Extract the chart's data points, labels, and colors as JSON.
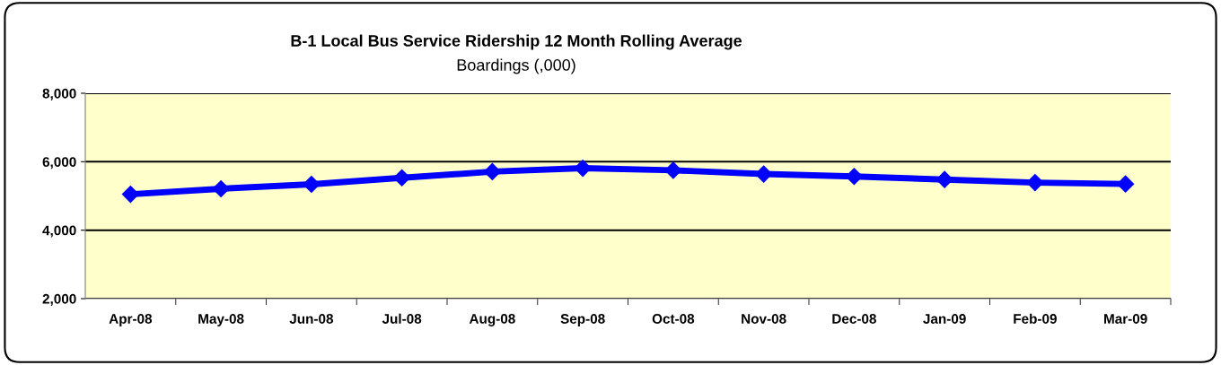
{
  "chart_data": {
    "type": "line",
    "title": "B-1 Local Bus Service Ridership 12 Month Rolling Average",
    "subtitle": "Boardings (,000)",
    "categories": [
      "Apr-08",
      "May-08",
      "Jun-08",
      "Jul-08",
      "Aug-08",
      "Sep-08",
      "Oct-08",
      "Nov-08",
      "Dec-08",
      "Jan-09",
      "Feb-09",
      "Mar-09"
    ],
    "series": [
      {
        "color": "#0000ff",
        "values": [
          5050,
          5210,
          5340,
          5530,
          5710,
          5810,
          5750,
          5640,
          5570,
          5480,
          5390,
          5350
        ]
      }
    ],
    "ylim": [
      2000,
      8000
    ],
    "yticks": [
      {
        "value": 2000,
        "label": "2,000"
      },
      {
        "value": 4000,
        "label": "4,000"
      },
      {
        "value": 6000,
        "label": "6,000"
      },
      {
        "value": 8000,
        "label": "8,000"
      }
    ],
    "grid": "y",
    "marker": "diamond",
    "line_style": "solid",
    "legend": false
  }
}
